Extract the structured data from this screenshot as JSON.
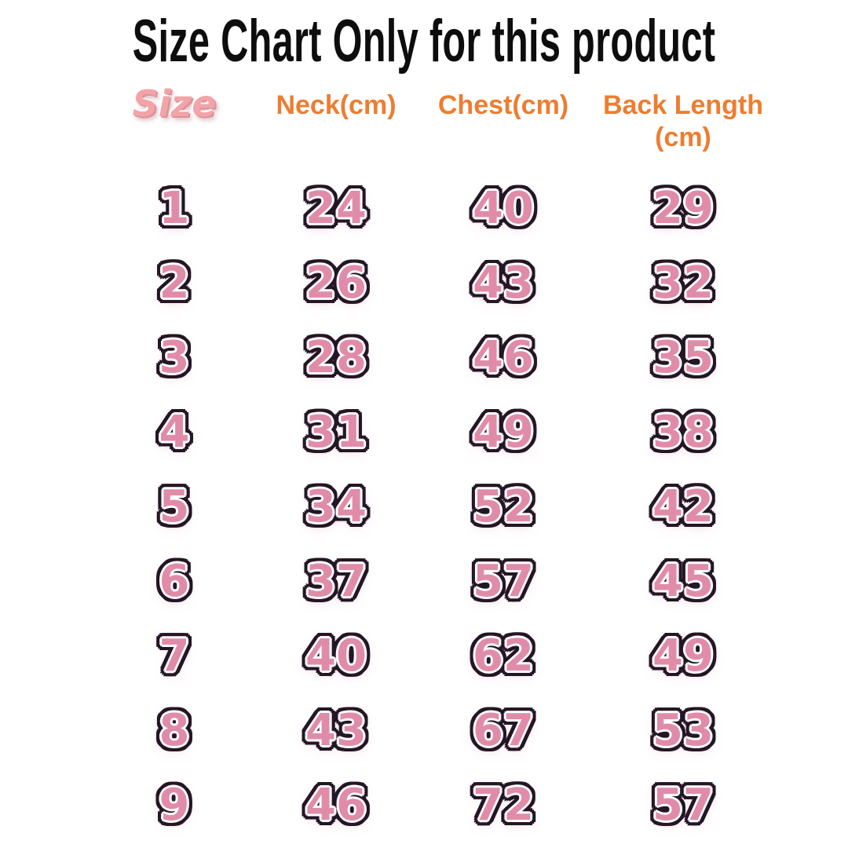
{
  "chart_data": {
    "type": "table",
    "title": "Size Chart Only for this product",
    "columns": [
      "Size",
      "Neck(cm)",
      "Chest(cm)",
      "Back Length (cm)"
    ],
    "rows": [
      [
        1,
        24,
        40,
        29
      ],
      [
        2,
        26,
        43,
        32
      ],
      [
        3,
        28,
        46,
        35
      ],
      [
        4,
        31,
        49,
        38
      ],
      [
        5,
        34,
        52,
        42
      ],
      [
        6,
        37,
        57,
        45
      ],
      [
        7,
        40,
        62,
        49
      ],
      [
        8,
        43,
        67,
        53
      ],
      [
        9,
        46,
        72,
        57
      ]
    ],
    "layout_hints": {
      "header_style": "orange bold, size header pink italic",
      "cell_style": "pink digits with white and black outline",
      "grid": "off"
    }
  },
  "colors": {
    "title_black": "#0D0D0D",
    "header_orange": "#ED7D31",
    "size_header_pink": "#F2A4A8",
    "number_fill_pink": "#E08CA9",
    "number_inner_ring_white": "#FFFFFF",
    "number_outer_ring_dark": "#241624",
    "background": "#FFFFFF"
  }
}
